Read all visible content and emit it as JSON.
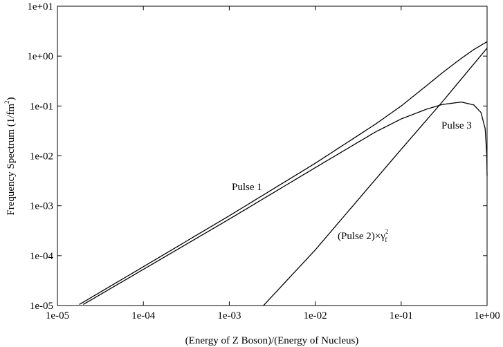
{
  "chart_data": {
    "type": "line",
    "title": "",
    "xlabel": "(Energy of Z Boson)/(Energy of Nucleus)",
    "ylabel": {
      "main": "Frequency Spectrum (1/fm",
      "sup": "2",
      "tail": ")"
    },
    "xscale": "log",
    "yscale": "log",
    "xlim": [
      1e-05,
      1
    ],
    "ylim": [
      1e-05,
      10
    ],
    "grid": false,
    "legend": "none",
    "x_tick_labels": [
      "1e-05",
      "1e-04",
      "1e-03",
      "1e-02",
      "1e-01",
      "1e+00"
    ],
    "y_tick_labels": [
      "1e-05",
      "1e-04",
      "1e-03",
      "1e-02",
      "1e-01",
      "1e+00",
      "1e+01"
    ],
    "series": [
      {
        "name": "Pulse 1",
        "x": [
          1.8e-05,
          0.0001,
          0.001,
          0.01,
          0.05,
          0.1,
          0.2,
          0.3,
          0.5,
          0.7,
          1.0
        ],
        "y": [
          1.05e-05,
          6e-05,
          0.00063,
          0.0071,
          0.043,
          0.1,
          0.26,
          0.46,
          0.9,
          1.35,
          1.95
        ]
      },
      {
        "name": "Pulse 3",
        "x": [
          2e-05,
          0.0001,
          0.001,
          0.01,
          0.05,
          0.1,
          0.2,
          0.3,
          0.5,
          0.7,
          0.85,
          0.95,
          0.99,
          1.0
        ],
        "y": [
          1.05e-05,
          5.3e-05,
          0.00054,
          0.0058,
          0.03,
          0.055,
          0.087,
          0.107,
          0.12,
          0.105,
          0.074,
          0.035,
          0.011,
          0.004
        ]
      },
      {
        "name": "(Pulse 2)×γ",
        "x": [
          0.0025,
          0.01,
          0.1,
          0.3,
          1.0
        ],
        "y": [
          1e-05,
          0.00013,
          0.0135,
          0.12,
          1.45
        ]
      }
    ],
    "annotations": [
      {
        "text": "Pulse 1",
        "x": 0.0025,
        "y": 0.0025
      },
      {
        "text": "Pulse 3",
        "x": 0.42,
        "y": 0.04
      },
      {
        "text": "(Pulse 2)×γ",
        "sup": "2",
        "sub": "f",
        "x": 0.052,
        "y": 0.00016
      }
    ]
  }
}
